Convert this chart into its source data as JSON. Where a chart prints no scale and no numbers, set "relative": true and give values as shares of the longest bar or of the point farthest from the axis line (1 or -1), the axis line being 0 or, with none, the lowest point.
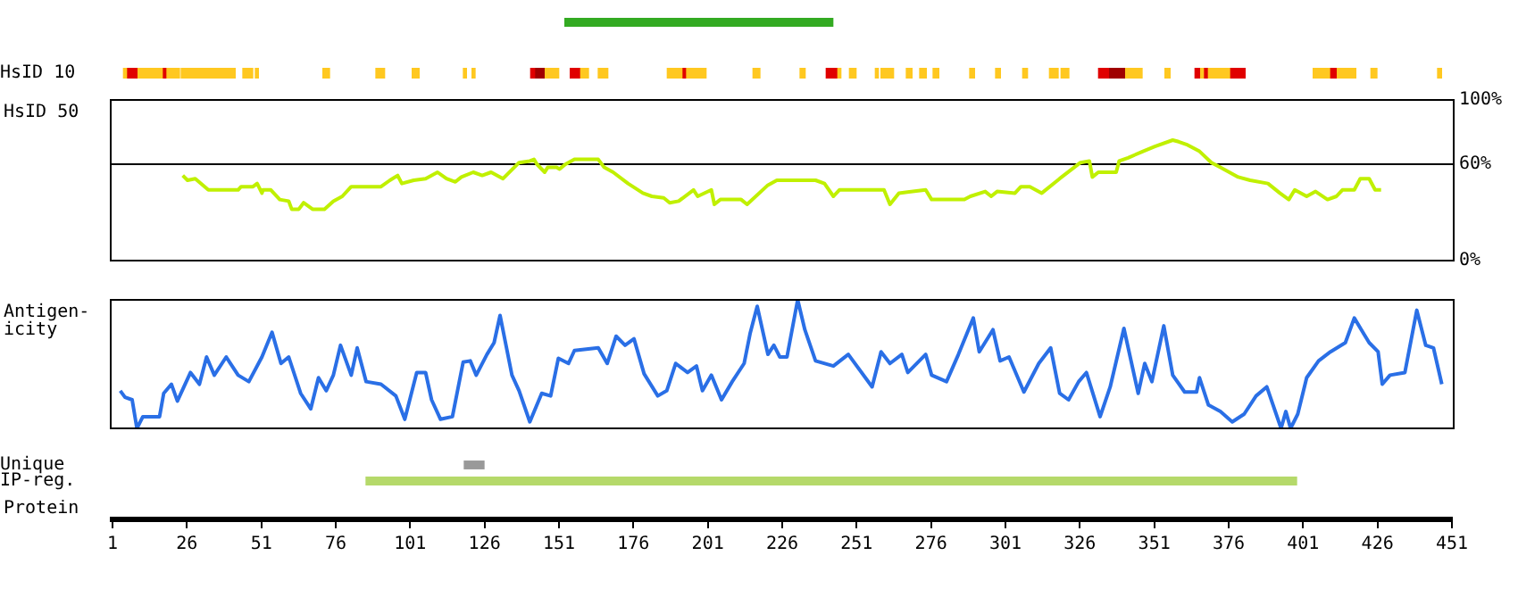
{
  "chart_data": [
    {
      "type": "bar",
      "orientation": "horizontal",
      "categories": [
        null
      ],
      "xlim": [
        1,
        451
      ],
      "tick_labels": false,
      "values": [
        90
      ],
      "base": [
        153
      ],
      "colors": [
        "#33aa22"
      ]
    },
    {
      "type": "bar",
      "orientation": "horizontal",
      "categories": [
        "HsID 10"
      ],
      "xlim": [
        1,
        451
      ],
      "tick_labels": "y",
      "series": [
        {
          "color": "#ffc820",
          "values": [
            1
          ],
          "base": [
            4.7
          ]
        },
        {
          "color": "#ffc820",
          "values": [
            8.1
          ],
          "base": [
            9.6
          ]
        },
        {
          "color": "#ffc820",
          "values": [
            4.2
          ],
          "base": [
            19.3
          ]
        },
        {
          "color": "#ffc820",
          "values": [
            18.1
          ],
          "base": [
            24.1
          ]
        },
        {
          "color": "#ffc820",
          "values": [
            3.3
          ],
          "base": [
            44.8
          ]
        },
        {
          "color": "#ffc820",
          "values": [
            1
          ],
          "base": [
            49
          ]
        },
        {
          "color": "#ffc820",
          "values": [
            2.2
          ],
          "base": [
            71.7
          ]
        },
        {
          "color": "#ffc820",
          "values": [
            2.9
          ],
          "base": [
            89.5
          ]
        },
        {
          "color": "#ffc820",
          "values": [
            2.3
          ],
          "base": [
            101.7
          ]
        },
        {
          "color": "#ffc820",
          "values": [
            1
          ],
          "base": [
            118.9
          ]
        },
        {
          "color": "#ffc820",
          "values": [
            1
          ],
          "base": [
            121.8
          ]
        },
        {
          "color": "#ffc820",
          "values": [
            4.5
          ],
          "base": [
            146.4
          ]
        },
        {
          "color": "#ffc820",
          "values": [
            2.6
          ],
          "base": [
            158.3
          ]
        },
        {
          "color": "#ffc820",
          "values": [
            3.2
          ],
          "base": [
            164.2
          ]
        },
        {
          "color": "#ffc820",
          "values": [
            4.9
          ],
          "base": [
            187.4
          ]
        },
        {
          "color": "#ffc820",
          "values": [
            6.5
          ],
          "base": [
            193.9
          ]
        },
        {
          "color": "#ffc820",
          "values": [
            2.3
          ],
          "base": [
            216.2
          ]
        },
        {
          "color": "#ffc820",
          "values": [
            1.7
          ],
          "base": [
            232
          ]
        },
        {
          "color": "#ffc820",
          "values": [
            1
          ],
          "base": [
            244.7
          ]
        },
        {
          "color": "#ffc820",
          "values": [
            2.2
          ],
          "base": [
            248.6
          ]
        },
        {
          "color": "#ffc820",
          "values": [
            1
          ],
          "base": [
            257.3
          ]
        },
        {
          "color": "#ffc820",
          "values": [
            4.2
          ],
          "base": [
            259.2
          ]
        },
        {
          "color": "#ffc820",
          "values": [
            1.9
          ],
          "base": [
            267.7
          ]
        },
        {
          "color": "#ffc820",
          "values": [
            2.2
          ],
          "base": [
            272.2
          ]
        },
        {
          "color": "#ffc820",
          "values": [
            1.9
          ],
          "base": [
            276.7
          ]
        },
        {
          "color": "#ffc820",
          "values": [
            1.6
          ],
          "base": [
            289
          ]
        },
        {
          "color": "#ffc820",
          "values": [
            1.6
          ],
          "base": [
            297.7
          ]
        },
        {
          "color": "#ffc820",
          "values": [
            1.6
          ],
          "base": [
            306.8
          ]
        },
        {
          "color": "#ffc820",
          "values": [
            2.9
          ],
          "base": [
            315.8
          ]
        },
        {
          "color": "#ffc820",
          "values": [
            2.6
          ],
          "base": [
            319.7
          ]
        },
        {
          "color": "#ffc820",
          "values": [
            5.5
          ],
          "base": [
            341.4
          ]
        },
        {
          "color": "#ffc820",
          "values": [
            1.7
          ],
          "base": [
            354.6
          ]
        },
        {
          "color": "#ffc820",
          "values": [
            0.9
          ],
          "base": [
            366.6
          ]
        },
        {
          "color": "#ffc820",
          "values": [
            7.1
          ],
          "base": [
            369.2
          ]
        },
        {
          "color": "#ffc820",
          "values": [
            5.5
          ],
          "base": [
            404.4
          ]
        },
        {
          "color": "#ffc820",
          "values": [
            6.2
          ],
          "base": [
            412.5
          ]
        },
        {
          "color": "#ffc820",
          "values": [
            2
          ],
          "base": [
            423.8
          ]
        },
        {
          "color": "#ffc820",
          "values": [
            1.3
          ],
          "base": [
            446.2
          ]
        },
        {
          "color": "#e00000",
          "values": [
            3.9
          ],
          "base": [
            5.7
          ]
        },
        {
          "color": "#e00000",
          "values": [
            1.6
          ],
          "base": [
            17.7
          ]
        },
        {
          "color": "#e00000",
          "values": [
            1.3
          ],
          "base": [
            141.5
          ]
        },
        {
          "color": "#a00000",
          "values": [
            3.6
          ],
          "base": [
            142.8
          ]
        },
        {
          "color": "#e00000",
          "values": [
            3.5
          ],
          "base": [
            154.8
          ]
        },
        {
          "color": "#e00000",
          "values": [
            1.6
          ],
          "base": [
            192.3
          ]
        },
        {
          "color": "#e00000",
          "values": [
            3.9
          ],
          "base": [
            240.8
          ]
        },
        {
          "color": "#e00000",
          "values": [
            3.3
          ],
          "base": [
            332.3
          ]
        },
        {
          "color": "#a00000",
          "values": [
            5.8
          ],
          "base": [
            335.6
          ]
        },
        {
          "color": "#e00000",
          "values": [
            1.9
          ],
          "base": [
            364.7
          ]
        },
        {
          "color": "#e00000",
          "values": [
            1.7
          ],
          "base": [
            367.5
          ]
        },
        {
          "color": "#e00000",
          "values": [
            5.2
          ],
          "base": [
            376.3
          ]
        },
        {
          "color": "#e00000",
          "values": [
            2.6
          ],
          "base": [
            409.9
          ]
        }
      ]
    },
    {
      "type": "line",
      "ylabel": "HsID 50",
      "xlim": [
        1,
        451
      ],
      "ylim": [
        0,
        100
      ],
      "yticks": [
        {
          "value": 0,
          "label": "0%"
        },
        {
          "value": 60,
          "label": "60%"
        },
        {
          "value": 100,
          "label": "100%"
        }
      ],
      "tick_labels": "y",
      "ref_lines": [
        {
          "axis": "y",
          "value": 60,
          "color": "#000000"
        }
      ],
      "series": [
        {
          "color": "#c0f000",
          "x": [
            24.6,
            26.2,
            28.8,
            33.2,
            36.2,
            43.2,
            44.2,
            48.2,
            49.6,
            51.2,
            51.6,
            54.2,
            57.2,
            60.2,
            61.2,
            63.6,
            65.2,
            68.2,
            72.2,
            75.2,
            78.2,
            81.2,
            91.2,
            94.2,
            96.8,
            98.2,
            102.2,
            106.2,
            110.2,
            113.2,
            116.2,
            118.2,
            122.2,
            125.2,
            128.2,
            132.2,
            137.6,
            141.2,
            142.6,
            143.6,
            146.2,
            147.2,
            150.2,
            151.2,
            153.2,
            156.2,
            164.2,
            166.2,
            169.2,
            174.2,
            179.2,
            182.2,
            186.2,
            188.2,
            191.2,
            196.2,
            197.6,
            202.2,
            203.2,
            205.2,
            212.2,
            214.2,
            221.2,
            224.2,
            233.2,
            237.2,
            240.2,
            243.2,
            245.2,
            260.2,
            262.2,
            265.2,
            274.2,
            276.2,
            287.2,
            289.2,
            294.2,
            296.2,
            298.2,
            304.2,
            306.2,
            309.2,
            313.2,
            319.2,
            326.2,
            329.2,
            330.2,
            332.2,
            338.2,
            339.2,
            342.2,
            347.2,
            351.2,
            357.2,
            359.2,
            362.2,
            366.2,
            370.2,
            373.2,
            379.2,
            383.2,
            389.2,
            393.2,
            396.2,
            398.2,
            402.2,
            405.2,
            409.2,
            412.2,
            414.2,
            418.2,
            420.2,
            423.2,
            425.2,
            427.2
          ],
          "values": [
            53,
            50,
            51,
            44,
            44,
            44,
            46,
            46,
            48,
            42,
            44,
            44,
            38,
            37,
            32,
            32,
            36,
            32,
            32,
            37,
            40,
            46,
            46,
            50,
            53,
            48,
            50,
            51,
            55,
            51,
            49,
            52,
            55,
            53,
            55,
            51,
            61,
            62,
            63,
            60,
            55,
            58,
            58,
            57,
            60,
            63,
            63,
            58,
            55,
            48,
            42,
            40,
            39,
            36,
            37,
            44,
            40,
            44,
            35,
            38,
            38,
            35,
            47,
            50,
            50,
            50,
            48,
            40,
            44,
            44,
            35,
            42,
            44,
            38,
            38,
            40,
            43,
            40,
            43,
            42,
            46,
            46,
            42,
            51,
            61,
            62,
            52,
            55,
            55,
            62,
            64,
            68,
            71,
            75,
            74,
            72,
            68,
            61,
            58,
            52,
            50,
            48,
            42,
            38,
            44,
            40,
            43,
            38,
            40,
            44,
            44,
            51,
            51,
            44,
            44
          ]
        }
      ]
    },
    {
      "type": "line",
      "ylabel": "Antigen-icity",
      "relative": true,
      "xlim": [
        1,
        451
      ],
      "tick_labels": false,
      "series": [
        {
          "color": "#2a6fe6",
          "x": [
            3.6,
            5.2,
            7.6,
            9.2,
            11.2,
            16.8,
            18.2,
            20.8,
            22.8,
            27.2,
            30.2,
            32.6,
            35.2,
            39.2,
            43.2,
            46.8,
            51.2,
            54.6,
            57.6,
            60.2,
            64.2,
            67.6,
            70.2,
            72.8,
            75.2,
            77.6,
            81.2,
            83.2,
            86.2,
            91.2,
            96.2,
            99.2,
            103.2,
            106.2,
            108.2,
            111.2,
            115.2,
            118.8,
            121.2,
            123.2,
            126.8,
            129.2,
            131.2,
            133.2,
            135.2,
            137.6,
            141.2,
            145.2,
            148.2,
            150.8,
            154.2,
            156.2,
            164.2,
            167.2,
            170.2,
            173.2,
            176.2,
            179.6,
            184.2,
            187.2,
            190.2,
            194.2,
            197.2,
            199.2,
            202.2,
            205.6,
            209.2,
            213.2,
            215.2,
            217.6,
            221.2,
            223.2,
            225.2,
            227.6,
            231.2,
            233.6,
            237.2,
            243.2,
            248.2,
            256.2,
            259.2,
            262.2,
            266.2,
            268.2,
            274.2,
            276.2,
            281.2,
            285.2,
            290.2,
            292.2,
            296.8,
            299.2,
            302.2,
            307.2,
            312.2,
            316.2,
            319.2,
            322.2,
            325.6,
            328.2,
            332.8,
            336.2,
            340.8,
            345.6,
            347.8,
            350.2,
            354.2,
            357.2,
            361.2,
            365.2,
            366.2,
            369.2,
            373.2,
            377.2,
            381.2,
            385.2,
            388.8,
            393.6,
            395.2,
            396.8,
            399.2,
            402.2,
            406.2,
            410.2,
            415.2,
            418.2,
            423.2,
            426.2,
            427.6,
            430.2,
            435.2,
            439.2,
            442.2,
            444.8,
            447.6
          ],
          "values": [
            0.3,
            0.25,
            0.23,
            0.01,
            0.1,
            0.1,
            0.28,
            0.35,
            0.22,
            0.44,
            0.35,
            0.56,
            0.42,
            0.56,
            0.42,
            0.37,
            0.56,
            0.75,
            0.51,
            0.56,
            0.28,
            0.16,
            0.4,
            0.3,
            0.42,
            0.65,
            0.42,
            0.63,
            0.37,
            0.35,
            0.26,
            0.08,
            0.44,
            0.44,
            0.23,
            0.08,
            0.1,
            0.52,
            0.53,
            0.42,
            0.58,
            0.67,
            0.88,
            0.65,
            0.42,
            0.3,
            0.06,
            0.28,
            0.26,
            0.55,
            0.51,
            0.61,
            0.63,
            0.51,
            0.72,
            0.65,
            0.7,
            0.43,
            0.26,
            0.3,
            0.51,
            0.44,
            0.49,
            0.3,
            0.42,
            0.23,
            0.37,
            0.51,
            0.74,
            0.95,
            0.58,
            0.65,
            0.56,
            0.56,
            1,
            0.77,
            0.53,
            0.49,
            0.58,
            0.33,
            0.6,
            0.51,
            0.58,
            0.44,
            0.58,
            0.42,
            0.37,
            0.58,
            0.86,
            0.6,
            0.77,
            0.53,
            0.56,
            0.29,
            0.51,
            0.63,
            0.28,
            0.23,
            0.37,
            0.44,
            0.1,
            0.33,
            0.78,
            0.28,
            0.51,
            0.37,
            0.8,
            0.42,
            0.29,
            0.29,
            0.4,
            0.19,
            0.14,
            0.06,
            0.12,
            0.26,
            0.33,
            0.01,
            0.14,
            0.01,
            0.12,
            0.4,
            0.53,
            0.6,
            0.67,
            0.86,
            0.67,
            0.6,
            0.35,
            0.42,
            0.44,
            0.92,
            0.65,
            0.63,
            0.35
          ]
        }
      ]
    },
    {
      "type": "bar",
      "orientation": "horizontal",
      "categories": [
        "Unique",
        "IP-reg."
      ],
      "xlabel": "Protein",
      "xlim": [
        1,
        451
      ],
      "xticks": [
        1,
        26,
        51,
        76,
        101,
        126,
        151,
        176,
        201,
        226,
        251,
        276,
        301,
        326,
        351,
        376,
        401,
        426,
        451
      ],
      "values": [
        7,
        313
      ],
      "base": [
        119,
        86
      ],
      "colors": [
        "#999999",
        "#b5d96a"
      ]
    }
  ]
}
